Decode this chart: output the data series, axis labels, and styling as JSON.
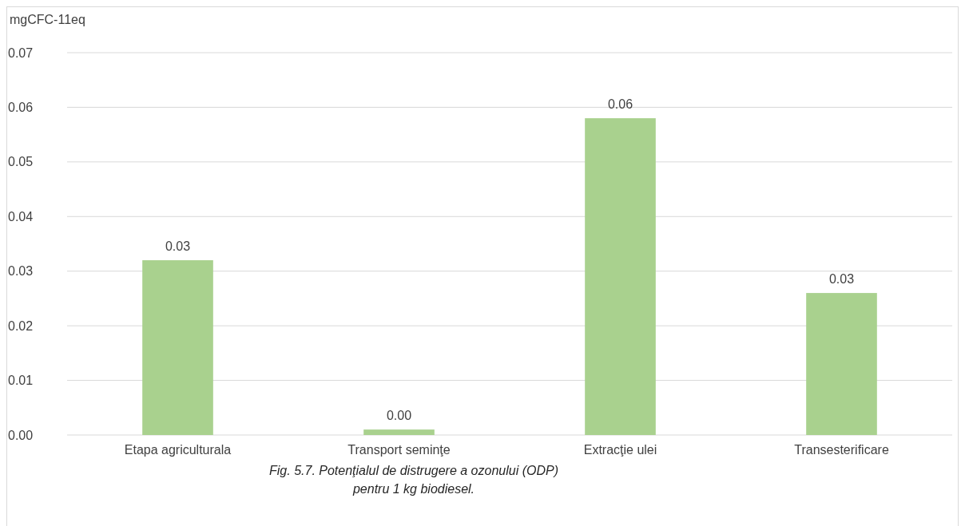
{
  "chart_data": {
    "type": "bar",
    "title": "Fig. 5.7. Potenţialul de distrugere a ozonului (ODP)",
    "subtitle": "pentru 1 kg biodiesel.",
    "ylabel": "mgCFC-11eq",
    "categories": [
      "Etapa agriculturala",
      "Transport seminţe",
      "Extracţie ulei",
      "Transesterificare"
    ],
    "values": [
      0.032,
      0.001,
      0.058,
      0.026
    ],
    "value_labels": [
      "0.03",
      "0.00",
      "0.06",
      "0.03"
    ],
    "color": "#a9d18e",
    "ylim": [
      0,
      0.07
    ],
    "yticks": [
      {
        "value": 0,
        "label": "0.00"
      },
      {
        "value": 0.01,
        "label": "0.01"
      },
      {
        "value": 0.02,
        "label": "0.02"
      },
      {
        "value": 0.03,
        "label": "0.03"
      },
      {
        "value": 0.04,
        "label": "0.04"
      },
      {
        "value": 0.05,
        "label": "0.05"
      },
      {
        "value": 0.06,
        "label": "0.06"
      },
      {
        "value": 0.07,
        "label": "0.07"
      }
    ],
    "grid": "y",
    "legend": false
  }
}
